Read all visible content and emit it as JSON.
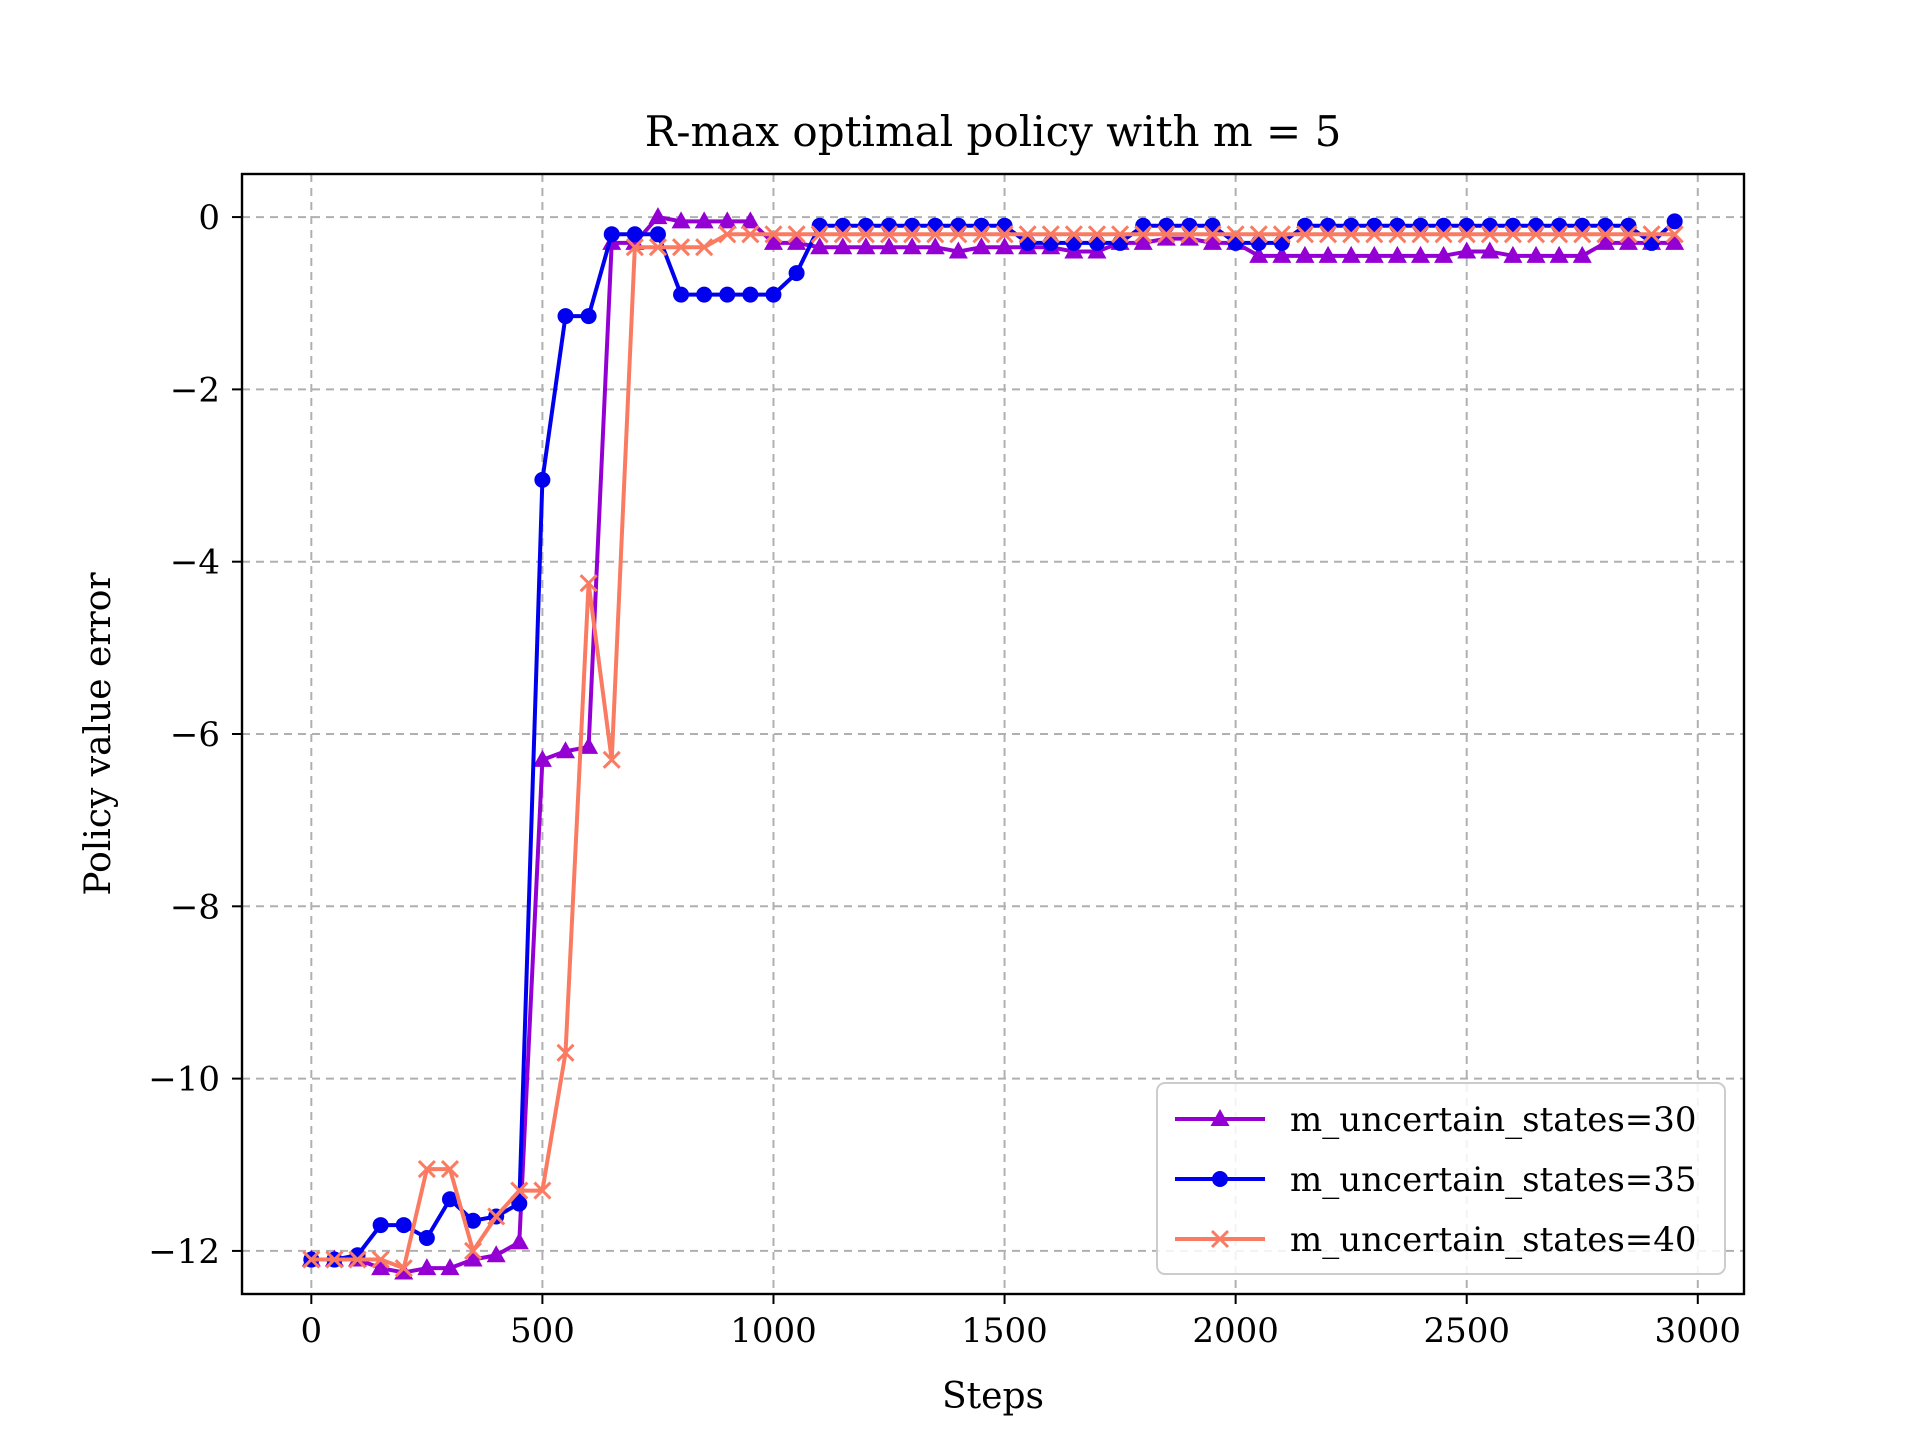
{
  "chart_data": {
    "type": "line",
    "title": "R-max optimal policy with m = 5",
    "xlabel": "Steps",
    "ylabel": "Policy value error",
    "xlim": [
      -150,
      3100
    ],
    "ylim": [
      -12.5,
      0.5
    ],
    "xticks": [
      0,
      500,
      1000,
      1500,
      2000,
      2500,
      3000
    ],
    "yticks": [
      0,
      -2,
      -4,
      -6,
      -8,
      -10,
      -12
    ],
    "xtick_labels": [
      "0",
      "500",
      "1000",
      "1500",
      "2000",
      "2500",
      "3000"
    ],
    "ytick_labels": [
      "0",
      "−2",
      "−4",
      "−6",
      "−8",
      "−10",
      "−12"
    ],
    "grid": true,
    "legend_position": "lower-right",
    "x": [
      0,
      50,
      100,
      150,
      200,
      250,
      300,
      350,
      400,
      450,
      500,
      550,
      600,
      650,
      700,
      750,
      800,
      850,
      900,
      950,
      1000,
      1050,
      1100,
      1150,
      1200,
      1250,
      1300,
      1350,
      1400,
      1450,
      1500,
      1550,
      1600,
      1650,
      1700,
      1750,
      1800,
      1850,
      1900,
      1950,
      2000,
      2050,
      2100,
      2150,
      2200,
      2250,
      2300,
      2350,
      2400,
      2450,
      2500,
      2550,
      2600,
      2650,
      2700,
      2750,
      2800,
      2850,
      2900,
      2950
    ],
    "series": [
      {
        "name": "m_uncertain_states=30",
        "color": "#9400d3",
        "marker": "triangle",
        "values": [
          -12.1,
          -12.1,
          -12.1,
          -12.2,
          -12.25,
          -12.2,
          -12.2,
          -12.1,
          -12.05,
          -11.9,
          -6.3,
          -6.2,
          -6.15,
          -0.3,
          -0.3,
          0.0,
          -0.05,
          -0.05,
          -0.05,
          -0.05,
          -0.3,
          -0.3,
          -0.35,
          -0.35,
          -0.35,
          -0.35,
          -0.35,
          -0.35,
          -0.4,
          -0.35,
          -0.35,
          -0.35,
          -0.35,
          -0.4,
          -0.4,
          -0.3,
          -0.3,
          -0.25,
          -0.25,
          -0.3,
          -0.3,
          -0.45,
          -0.45,
          -0.45,
          -0.45,
          -0.45,
          -0.45,
          -0.45,
          -0.45,
          -0.45,
          -0.4,
          -0.4,
          -0.45,
          -0.45,
          -0.45,
          -0.45,
          -0.3,
          -0.3,
          -0.3,
          -0.3
        ]
      },
      {
        "name": "m_uncertain_states=35",
        "color": "#0000ee",
        "marker": "circle",
        "values": [
          -12.1,
          -12.1,
          -12.05,
          -11.7,
          -11.7,
          -11.85,
          -11.4,
          -11.65,
          -11.6,
          -11.45,
          -3.05,
          -1.15,
          -1.15,
          -0.2,
          -0.2,
          -0.2,
          -0.9,
          -0.9,
          -0.9,
          -0.9,
          -0.9,
          -0.65,
          -0.1,
          -0.1,
          -0.1,
          -0.1,
          -0.1,
          -0.1,
          -0.1,
          -0.1,
          -0.1,
          -0.3,
          -0.3,
          -0.3,
          -0.3,
          -0.3,
          -0.1,
          -0.1,
          -0.1,
          -0.1,
          -0.3,
          -0.3,
          -0.3,
          -0.1,
          -0.1,
          -0.1,
          -0.1,
          -0.1,
          -0.1,
          -0.1,
          -0.1,
          -0.1,
          -0.1,
          -0.1,
          -0.1,
          -0.1,
          -0.1,
          -0.1,
          -0.3,
          -0.05
        ]
      },
      {
        "name": "m_uncertain_states=40",
        "color": "#fa7b62",
        "marker": "x",
        "values": [
          -12.1,
          -12.1,
          -12.1,
          -12.1,
          -12.2,
          -11.05,
          -11.05,
          -12.0,
          -11.6,
          -11.3,
          -11.3,
          -9.7,
          -4.25,
          -6.3,
          -0.35,
          -0.35,
          -0.35,
          -0.35,
          -0.2,
          -0.2,
          -0.2,
          -0.2,
          -0.2,
          -0.2,
          -0.2,
          -0.2,
          -0.2,
          -0.2,
          -0.2,
          -0.2,
          -0.2,
          -0.2,
          -0.2,
          -0.2,
          -0.2,
          -0.2,
          -0.2,
          -0.2,
          -0.2,
          -0.2,
          -0.2,
          -0.2,
          -0.2,
          -0.2,
          -0.2,
          -0.2,
          -0.2,
          -0.2,
          -0.2,
          -0.2,
          -0.2,
          -0.2,
          -0.2,
          -0.2,
          -0.2,
          -0.2,
          -0.2,
          -0.2,
          -0.2,
          -0.2
        ]
      }
    ]
  }
}
